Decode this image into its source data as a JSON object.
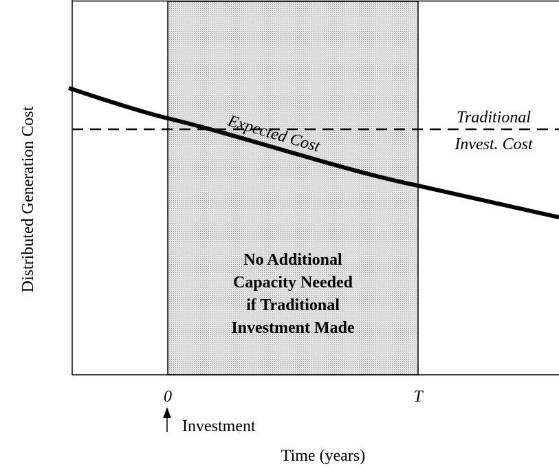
{
  "axis": {
    "y_label": "Distributed Generation Cost",
    "x_label": "Time (years)"
  },
  "ticks": [
    "0",
    "T"
  ],
  "annotations": {
    "investment": "Investment",
    "traditional": [
      "Traditional",
      "Invest. Cost"
    ],
    "expected_cost": "Expected Cost",
    "box": [
      "No Additional",
      "Capacity Needed",
      "if Traditional",
      "Investment Made"
    ]
  }
}
